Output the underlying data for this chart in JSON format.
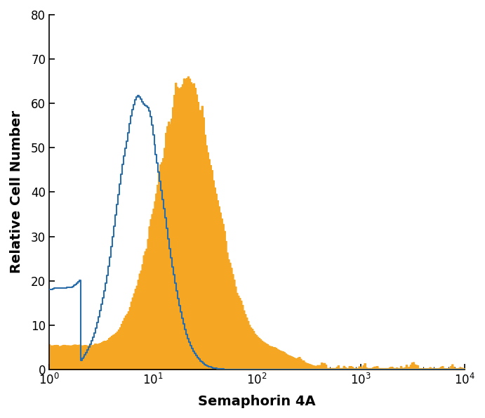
{
  "xlabel": "Semaphorin 4A",
  "ylabel": "Relative Cell Number",
  "xlim_log": [
    1,
    10000
  ],
  "ylim": [
    0,
    80
  ],
  "yticks": [
    0,
    10,
    20,
    30,
    40,
    50,
    60,
    70,
    80
  ],
  "orange_color": "#F5A623",
  "blue_color": "#2B6DA8",
  "background_color": "#ffffff",
  "blue_peak_log": 0.88,
  "blue_sigma": 0.22,
  "blue_scale": 62,
  "blue_baseline": 18,
  "blue_baseline_end_log": 0.3,
  "orange_peak_log": 1.32,
  "orange_sigma": 0.28,
  "orange_scale": 60,
  "orange_baseline": 5.5,
  "n_bins": 300
}
